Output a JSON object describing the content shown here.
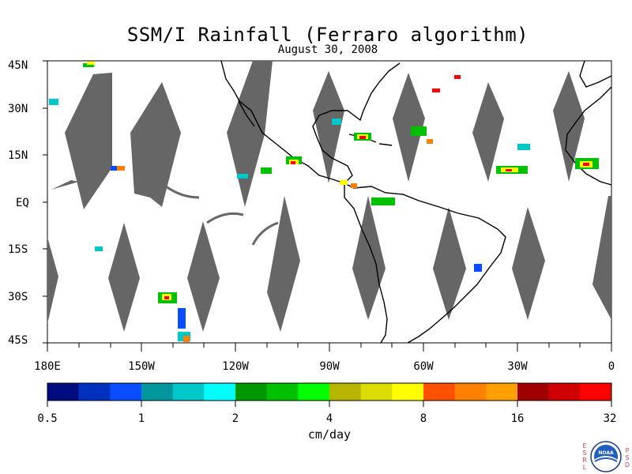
{
  "header": {
    "title": "SSM/I Rainfall (Ferraro algorithm)",
    "date": "August 30, 2008"
  },
  "map": {
    "lat_labels": [
      "45N",
      "30N",
      "15N",
      "EQ",
      "15S",
      "30S",
      "45S"
    ],
    "lon_labels": [
      "180E",
      "150W",
      "120W",
      "90W",
      "60W",
      "30W",
      "0"
    ],
    "swath_gap_color": "#666666",
    "coastline_color": "#000000"
  },
  "colorbar": {
    "colors": [
      "#000c80",
      "#0030c0",
      "#0a4cff",
      "#00989c",
      "#00c8c8",
      "#00ffff",
      "#009800",
      "#00c000",
      "#00ff00",
      "#b8b400",
      "#dcdc00",
      "#ffff00",
      "#ff5000",
      "#ff8000",
      "#ffa000",
      "#a00000",
      "#d00000",
      "#ff0000"
    ],
    "tick_labels": [
      "0.5",
      "1",
      "2",
      "4",
      "8",
      "16",
      "32"
    ],
    "units": "cm/day"
  },
  "logo": {
    "left_letters": [
      "E",
      "S",
      "R",
      "L"
    ],
    "right_letters": [
      "P",
      "S",
      "D"
    ],
    "badge": "NOAA"
  }
}
